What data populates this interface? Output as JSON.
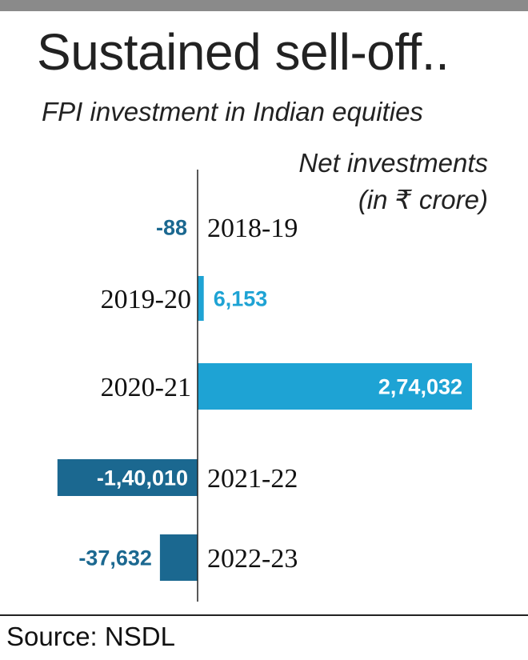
{
  "title": "Sustained sell-off..",
  "subtitle": "FPI investment in Indian equities",
  "unit_line1": "Net investments",
  "unit_line2": "(in ₹ crore)",
  "source": "Source: NSDL",
  "colors": {
    "positive": "#1ea3d4",
    "negative": "#1b6890"
  },
  "chart_data": {
    "type": "bar",
    "orientation": "horizontal",
    "categories": [
      "2018-19",
      "2019-20",
      "2020-21",
      "2021-22",
      "2022-23"
    ],
    "values": [
      -88,
      6153,
      274032,
      -140010,
      -37632
    ],
    "value_labels": [
      "-88",
      "6,153",
      "2,74,032",
      "-1,40,010",
      "-37,632"
    ],
    "title": "Sustained sell-off..",
    "xlabel": "Net investments (in ₹ crore)",
    "ylabel": "",
    "grid": false
  }
}
